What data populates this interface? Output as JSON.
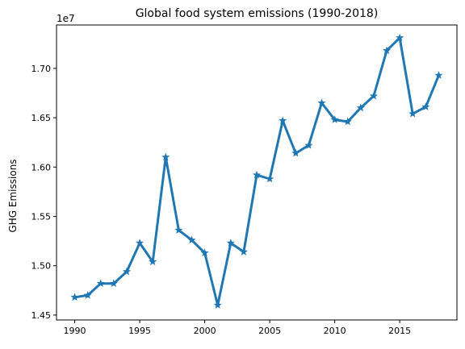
{
  "chart_data": {
    "type": "line",
    "title": "Global food system emissions (1990-2018)",
    "xlabel": "",
    "ylabel": "GHG Emissions",
    "y_scale_label": "1e7",
    "xlim": [
      1988.6,
      2019.4
    ],
    "ylim": [
      14.45,
      17.44
    ],
    "x_ticks": [
      1990,
      1995,
      2000,
      2005,
      2010,
      2015
    ],
    "y_ticks": [
      1.45,
      1.5,
      1.55,
      1.6,
      1.65,
      1.7
    ],
    "y_tick_labels": [
      "1.45",
      "1.50",
      "1.55",
      "1.60",
      "1.65",
      "1.70"
    ],
    "grid": false,
    "series": [
      {
        "name": "",
        "color": "#1f77b4",
        "marker": "star",
        "x": [
          1990,
          1991,
          1992,
          1993,
          1994,
          1995,
          1996,
          1997,
          1998,
          1999,
          2000,
          2001,
          2002,
          2003,
          2004,
          2005,
          2006,
          2007,
          2008,
          2009,
          2010,
          2011,
          2012,
          2013,
          2014,
          2015,
          2016,
          2017,
          2018
        ],
        "y": [
          14.68,
          14.7,
          14.82,
          14.82,
          14.94,
          15.23,
          15.04,
          16.1,
          15.36,
          15.26,
          15.13,
          14.6,
          15.23,
          15.14,
          15.92,
          15.88,
          16.47,
          16.14,
          16.22,
          16.65,
          16.48,
          16.46,
          16.6,
          16.72,
          17.18,
          17.31,
          16.54,
          16.61,
          16.93
        ]
      }
    ]
  }
}
